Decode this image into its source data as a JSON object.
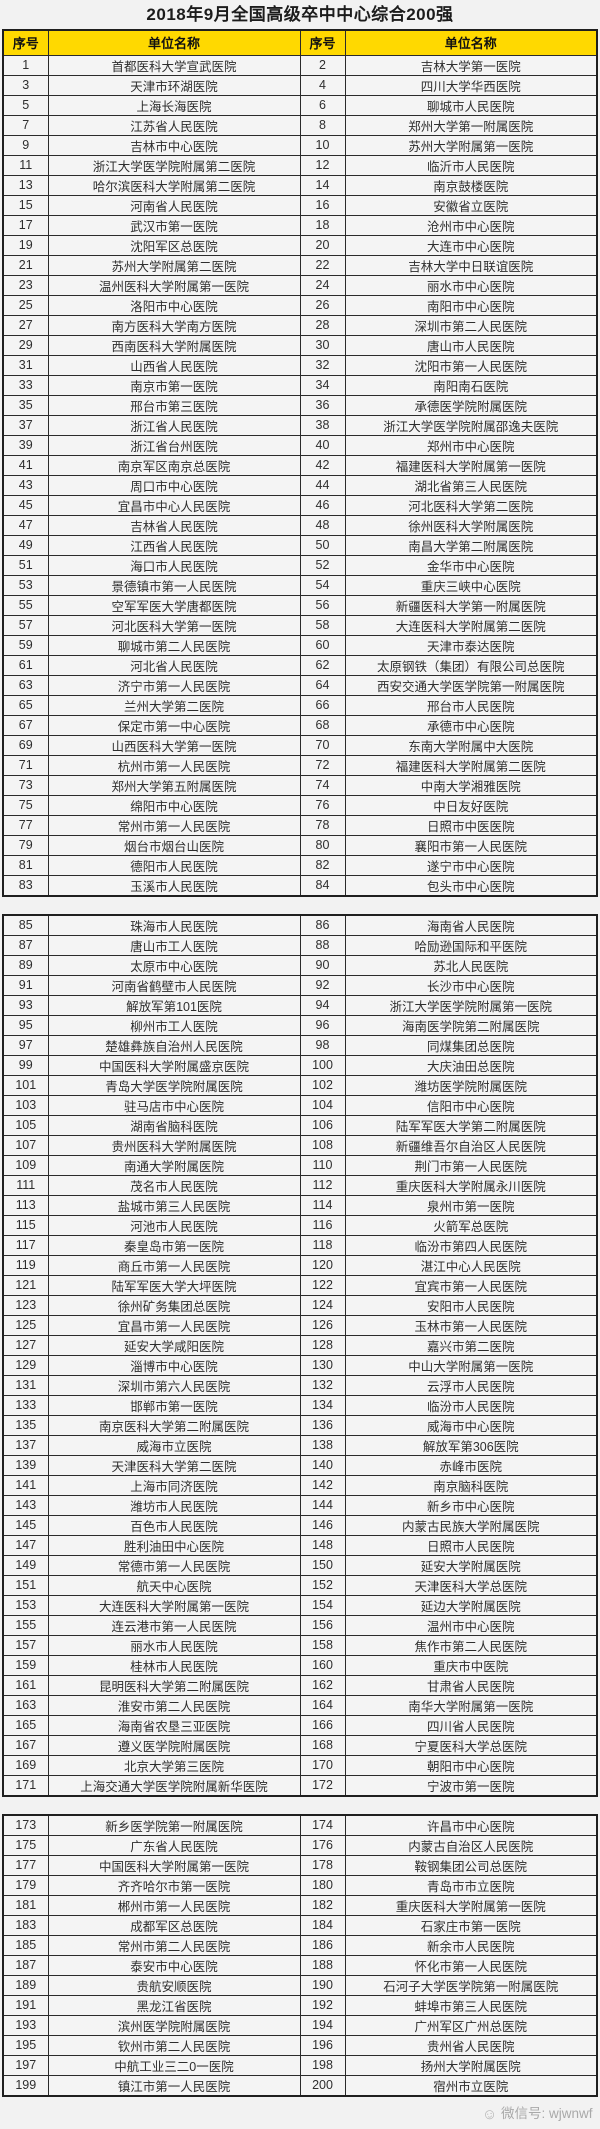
{
  "title": "2018年9月全国高级卒中中心综合200强",
  "columns": [
    "序号",
    "单位名称",
    "序号",
    "单位名称"
  ],
  "colors": {
    "header_bg": "#ffd900",
    "border": "#1f1f1f",
    "page_bg": "#f2f2f2"
  },
  "tables": [
    {
      "rows": [
        [
          "1",
          "首都医科大学宣武医院",
          "2",
          "吉林大学第一医院"
        ],
        [
          "3",
          "天津市环湖医院",
          "4",
          "四川大学华西医院"
        ],
        [
          "5",
          "上海长海医院",
          "6",
          "聊城市人民医院"
        ],
        [
          "7",
          "江苏省人民医院",
          "8",
          "郑州大学第一附属医院"
        ],
        [
          "9",
          "吉林市中心医院",
          "10",
          "苏州大学附属第一医院"
        ],
        [
          "11",
          "浙江大学医学院附属第二医院",
          "12",
          "临沂市人民医院"
        ],
        [
          "13",
          "哈尔滨医科大学附属第二医院",
          "14",
          "南京鼓楼医院"
        ],
        [
          "15",
          "河南省人民医院",
          "16",
          "安徽省立医院"
        ],
        [
          "17",
          "武汉市第一医院",
          "18",
          "沧州市中心医院"
        ],
        [
          "19",
          "沈阳军区总医院",
          "20",
          "大连市中心医院"
        ],
        [
          "21",
          "苏州大学附属第二医院",
          "22",
          "吉林大学中日联谊医院"
        ],
        [
          "23",
          "温州医科大学附属第一医院",
          "24",
          "丽水市中心医院"
        ],
        [
          "25",
          "洛阳市中心医院",
          "26",
          "南阳市中心医院"
        ],
        [
          "27",
          "南方医科大学南方医院",
          "28",
          "深圳市第二人民医院"
        ],
        [
          "29",
          "西南医科大学附属医院",
          "30",
          "唐山市人民医院"
        ],
        [
          "31",
          "山西省人民医院",
          "32",
          "沈阳市第一人民医院"
        ],
        [
          "33",
          "南京市第一医院",
          "34",
          "南阳南石医院"
        ],
        [
          "35",
          "邢台市第三医院",
          "36",
          "承德医学院附属医院"
        ],
        [
          "37",
          "浙江省人民医院",
          "38",
          "浙江大学医学院附属邵逸夫医院"
        ],
        [
          "39",
          "浙江省台州医院",
          "40",
          "郑州市中心医院"
        ],
        [
          "41",
          "南京军区南京总医院",
          "42",
          "福建医科大学附属第一医院"
        ],
        [
          "43",
          "周口市中心医院",
          "44",
          "湖北省第三人民医院"
        ],
        [
          "45",
          "宜昌市中心人民医院",
          "46",
          "河北医科大学第二医院"
        ],
        [
          "47",
          "吉林省人民医院",
          "48",
          "徐州医科大学附属医院"
        ],
        [
          "49",
          "江西省人民医院",
          "50",
          "南昌大学第二附属医院"
        ],
        [
          "51",
          "海口市人民医院",
          "52",
          "金华市中心医院"
        ],
        [
          "53",
          "景德镇市第一人民医院",
          "54",
          "重庆三峡中心医院"
        ],
        [
          "55",
          "空军军医大学唐都医院",
          "56",
          "新疆医科大学第一附属医院"
        ],
        [
          "57",
          "河北医科大学第一医院",
          "58",
          "大连医科大学附属第二医院"
        ],
        [
          "59",
          "聊城市第二人民医院",
          "60",
          "天津市泰达医院"
        ],
        [
          "61",
          "河北省人民医院",
          "62",
          "太原钢铁（集团）有限公司总医院"
        ],
        [
          "63",
          "济宁市第一人民医院",
          "64",
          "西安交通大学医学院第一附属医院"
        ],
        [
          "65",
          "兰州大学第二医院",
          "66",
          "邢台市人民医院"
        ],
        [
          "67",
          "保定市第一中心医院",
          "68",
          "承德市中心医院"
        ],
        [
          "69",
          "山西医科大学第一医院",
          "70",
          "东南大学附属中大医院"
        ],
        [
          "71",
          "杭州市第一人民医院",
          "72",
          "福建医科大学附属第二医院"
        ],
        [
          "73",
          "郑州大学第五附属医院",
          "74",
          "中南大学湘雅医院"
        ],
        [
          "75",
          "绵阳市中心医院",
          "76",
          "中日友好医院"
        ],
        [
          "77",
          "常州市第一人民医院",
          "78",
          "日照市中医医院"
        ],
        [
          "79",
          "烟台市烟台山医院",
          "80",
          "襄阳市第一人民医院"
        ],
        [
          "81",
          "德阳市人民医院",
          "82",
          "遂宁市中心医院"
        ],
        [
          "83",
          "玉溪市人民医院",
          "84",
          "包头市中心医院"
        ]
      ]
    },
    {
      "rows": [
        [
          "85",
          "珠海市人民医院",
          "86",
          "海南省人民医院"
        ],
        [
          "87",
          "唐山市工人医院",
          "88",
          "哈励逊国际和平医院"
        ],
        [
          "89",
          "太原市中心医院",
          "90",
          "苏北人民医院"
        ],
        [
          "91",
          "河南省鹤壁市人民医院",
          "92",
          "长沙市中心医院"
        ],
        [
          "93",
          "解放军第101医院",
          "94",
          "浙江大学医学院附属第一医院"
        ],
        [
          "95",
          "柳州市工人医院",
          "96",
          "海南医学院第二附属医院"
        ],
        [
          "97",
          "楚雄彝族自治州人民医院",
          "98",
          "同煤集团总医院"
        ],
        [
          "99",
          "中国医科大学附属盛京医院",
          "100",
          "大庆油田总医院"
        ],
        [
          "101",
          "青岛大学医学院附属医院",
          "102",
          "潍坊医学院附属医院"
        ],
        [
          "103",
          "驻马店市中心医院",
          "104",
          "信阳市中心医院"
        ],
        [
          "105",
          "湖南省脑科医院",
          "106",
          "陆军军医大学第二附属医院"
        ],
        [
          "107",
          "贵州医科大学附属医院",
          "108",
          "新疆维吾尔自治区人民医院"
        ],
        [
          "109",
          "南通大学附属医院",
          "110",
          "荆门市第一人民医院"
        ],
        [
          "111",
          "茂名市人民医院",
          "112",
          "重庆医科大学附属永川医院"
        ],
        [
          "113",
          "盐城市第三人民医院",
          "114",
          "泉州市第一医院"
        ],
        [
          "115",
          "河池市人民医院",
          "116",
          "火箭军总医院"
        ],
        [
          "117",
          "秦皇岛市第一医院",
          "118",
          "临汾市第四人民医院"
        ],
        [
          "119",
          "商丘市第一人民医院",
          "120",
          "湛江中心人民医院"
        ],
        [
          "121",
          "陆军军医大学大坪医院",
          "122",
          "宜宾市第一人民医院"
        ],
        [
          "123",
          "徐州矿务集团总医院",
          "124",
          "安阳市人民医院"
        ],
        [
          "125",
          "宜昌市第一人民医院",
          "126",
          "玉林市第一人民医院"
        ],
        [
          "127",
          "延安大学咸阳医院",
          "128",
          "嘉兴市第二医院"
        ],
        [
          "129",
          "淄博市中心医院",
          "130",
          "中山大学附属第一医院"
        ],
        [
          "131",
          "深圳市第六人民医院",
          "132",
          "云浮市人民医院"
        ],
        [
          "133",
          "邯郸市第一医院",
          "134",
          "临汾市人民医院"
        ],
        [
          "135",
          "南京医科大学第二附属医院",
          "136",
          "威海市中心医院"
        ],
        [
          "137",
          "威海市立医院",
          "138",
          "解放军第306医院"
        ],
        [
          "139",
          "天津医科大学第二医院",
          "140",
          "赤峰市医院"
        ],
        [
          "141",
          "上海市同济医院",
          "142",
          "南京脑科医院"
        ],
        [
          "143",
          "潍坊市人民医院",
          "144",
          "新乡市中心医院"
        ],
        [
          "145",
          "百色市人民医院",
          "146",
          "内蒙古民族大学附属医院"
        ],
        [
          "147",
          "胜利油田中心医院",
          "148",
          "日照市人民医院"
        ],
        [
          "149",
          "常德市第一人民医院",
          "150",
          "延安大学附属医院"
        ],
        [
          "151",
          "航天中心医院",
          "152",
          "天津医科大学总医院"
        ],
        [
          "153",
          "大连医科大学附属第一医院",
          "154",
          "延边大学附属医院"
        ],
        [
          "155",
          "连云港市第一人民医院",
          "156",
          "温州市中心医院"
        ],
        [
          "157",
          "丽水市人民医院",
          "158",
          "焦作市第二人民医院"
        ],
        [
          "159",
          "桂林市人民医院",
          "160",
          "重庆市中医院"
        ],
        [
          "161",
          "昆明医科大学第二附属医院",
          "162",
          "甘肃省人民医院"
        ],
        [
          "163",
          "淮安市第二人民医院",
          "164",
          "南华大学附属第一医院"
        ],
        [
          "165",
          "海南省农垦三亚医院",
          "166",
          "四川省人民医院"
        ],
        [
          "167",
          "遵义医学院附属医院",
          "168",
          "宁夏医科大学总医院"
        ],
        [
          "169",
          "北京大学第三医院",
          "170",
          "朝阳市中心医院"
        ],
        [
          "171",
          "上海交通大学医学院附属新华医院",
          "172",
          "宁波市第一医院"
        ]
      ]
    },
    {
      "rows": [
        [
          "173",
          "新乡医学院第一附属医院",
          "174",
          "许昌市中心医院"
        ],
        [
          "175",
          "广东省人民医院",
          "176",
          "内蒙古自治区人民医院"
        ],
        [
          "177",
          "中国医科大学附属第一医院",
          "178",
          "鞍钢集团公司总医院"
        ],
        [
          "179",
          "齐齐哈尔市第一医院",
          "180",
          "青岛市市立医院"
        ],
        [
          "181",
          "郴州市第一人民医院",
          "182",
          "重庆医科大学附属第一医院"
        ],
        [
          "183",
          "成都军区总医院",
          "184",
          "石家庄市第一医院"
        ],
        [
          "185",
          "常州市第二人民医院",
          "186",
          "新余市人民医院"
        ],
        [
          "187",
          "泰安市中心医院",
          "188",
          "怀化市第一人民医院"
        ],
        [
          "189",
          "贵航安顺医院",
          "190",
          "石河子大学医学院第一附属医院"
        ],
        [
          "191",
          "黑龙江省医院",
          "192",
          "蚌埠市第三人民医院"
        ],
        [
          "193",
          "滨州医学院附属医院",
          "194",
          "广州军区广州总医院"
        ],
        [
          "195",
          "钦州市第二人民医院",
          "196",
          "贵州省人民医院"
        ],
        [
          "197",
          "中航工业三二0一医院",
          "198",
          "扬州大学附属医院"
        ],
        [
          "199",
          "镇江市第一人民医院",
          "200",
          "宿州市立医院"
        ]
      ]
    }
  ],
  "footer": {
    "watermark": "微信号: wjwnwf",
    "icon": "wechat-smiley-icon"
  }
}
